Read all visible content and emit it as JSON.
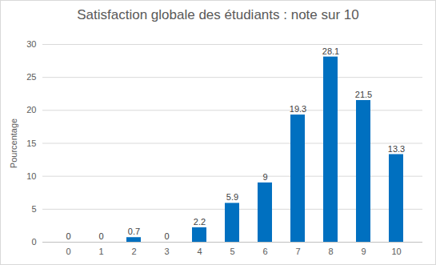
{
  "chart_data": {
    "type": "bar",
    "title": "Satisfaction globale des étudiants : note sur 10",
    "y_label": "Pourcentage",
    "categories": [
      "0",
      "1",
      "2",
      "3",
      "4",
      "5",
      "6",
      "7",
      "8",
      "9",
      "10"
    ],
    "values": [
      0,
      0,
      0.7,
      0,
      2.2,
      5.9,
      9,
      19.3,
      28.1,
      21.5,
      13.3
    ],
    "color": "#0070c0",
    "ylim": [
      0,
      30
    ],
    "yticks": [
      0,
      5,
      10,
      15,
      20,
      25,
      30
    ],
    "grid": true,
    "data_labels": true
  }
}
